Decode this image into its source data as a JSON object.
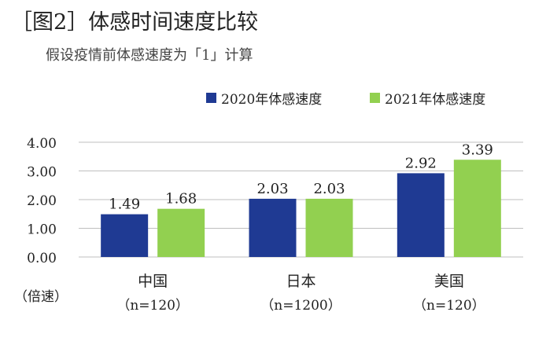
{
  "header": {
    "title": "［图2］体感时间速度比较",
    "subtitle": "假设疫情前体感速度为「1」计算"
  },
  "colors": {
    "series_2020": "#1f3a93",
    "series_2021": "#92d050",
    "grid": "#bfbfbf"
  },
  "chart_data": {
    "type": "bar",
    "title": "［图2］体感时间速度比较",
    "subtitle": "假设疫情前体感速度为「1」计算",
    "categories": [
      "中国",
      "日本",
      "美国"
    ],
    "category_notes": [
      "（n=120）",
      "（n=1200）",
      "（n=120）"
    ],
    "series": [
      {
        "name": "2020年体感速度",
        "values": [
          1.49,
          2.03,
          2.92
        ]
      },
      {
        "name": "2021年体感速度",
        "values": [
          1.68,
          2.03,
          3.39
        ]
      }
    ],
    "data_labels_2020": [
      "1.49",
      "2.03",
      "2.92"
    ],
    "data_labels_2021": [
      "1.68",
      "2.03",
      "3.39"
    ],
    "y_tick_values": [
      0,
      1,
      2,
      3,
      4
    ],
    "y_tick_labels": [
      "0.00",
      "1.00",
      "2.00",
      "3.00",
      "4.00"
    ],
    "ylim": [
      0,
      4
    ],
    "ylabel": "（倍速）",
    "xlabel": "",
    "grid": true,
    "legend_position": "top-right"
  }
}
